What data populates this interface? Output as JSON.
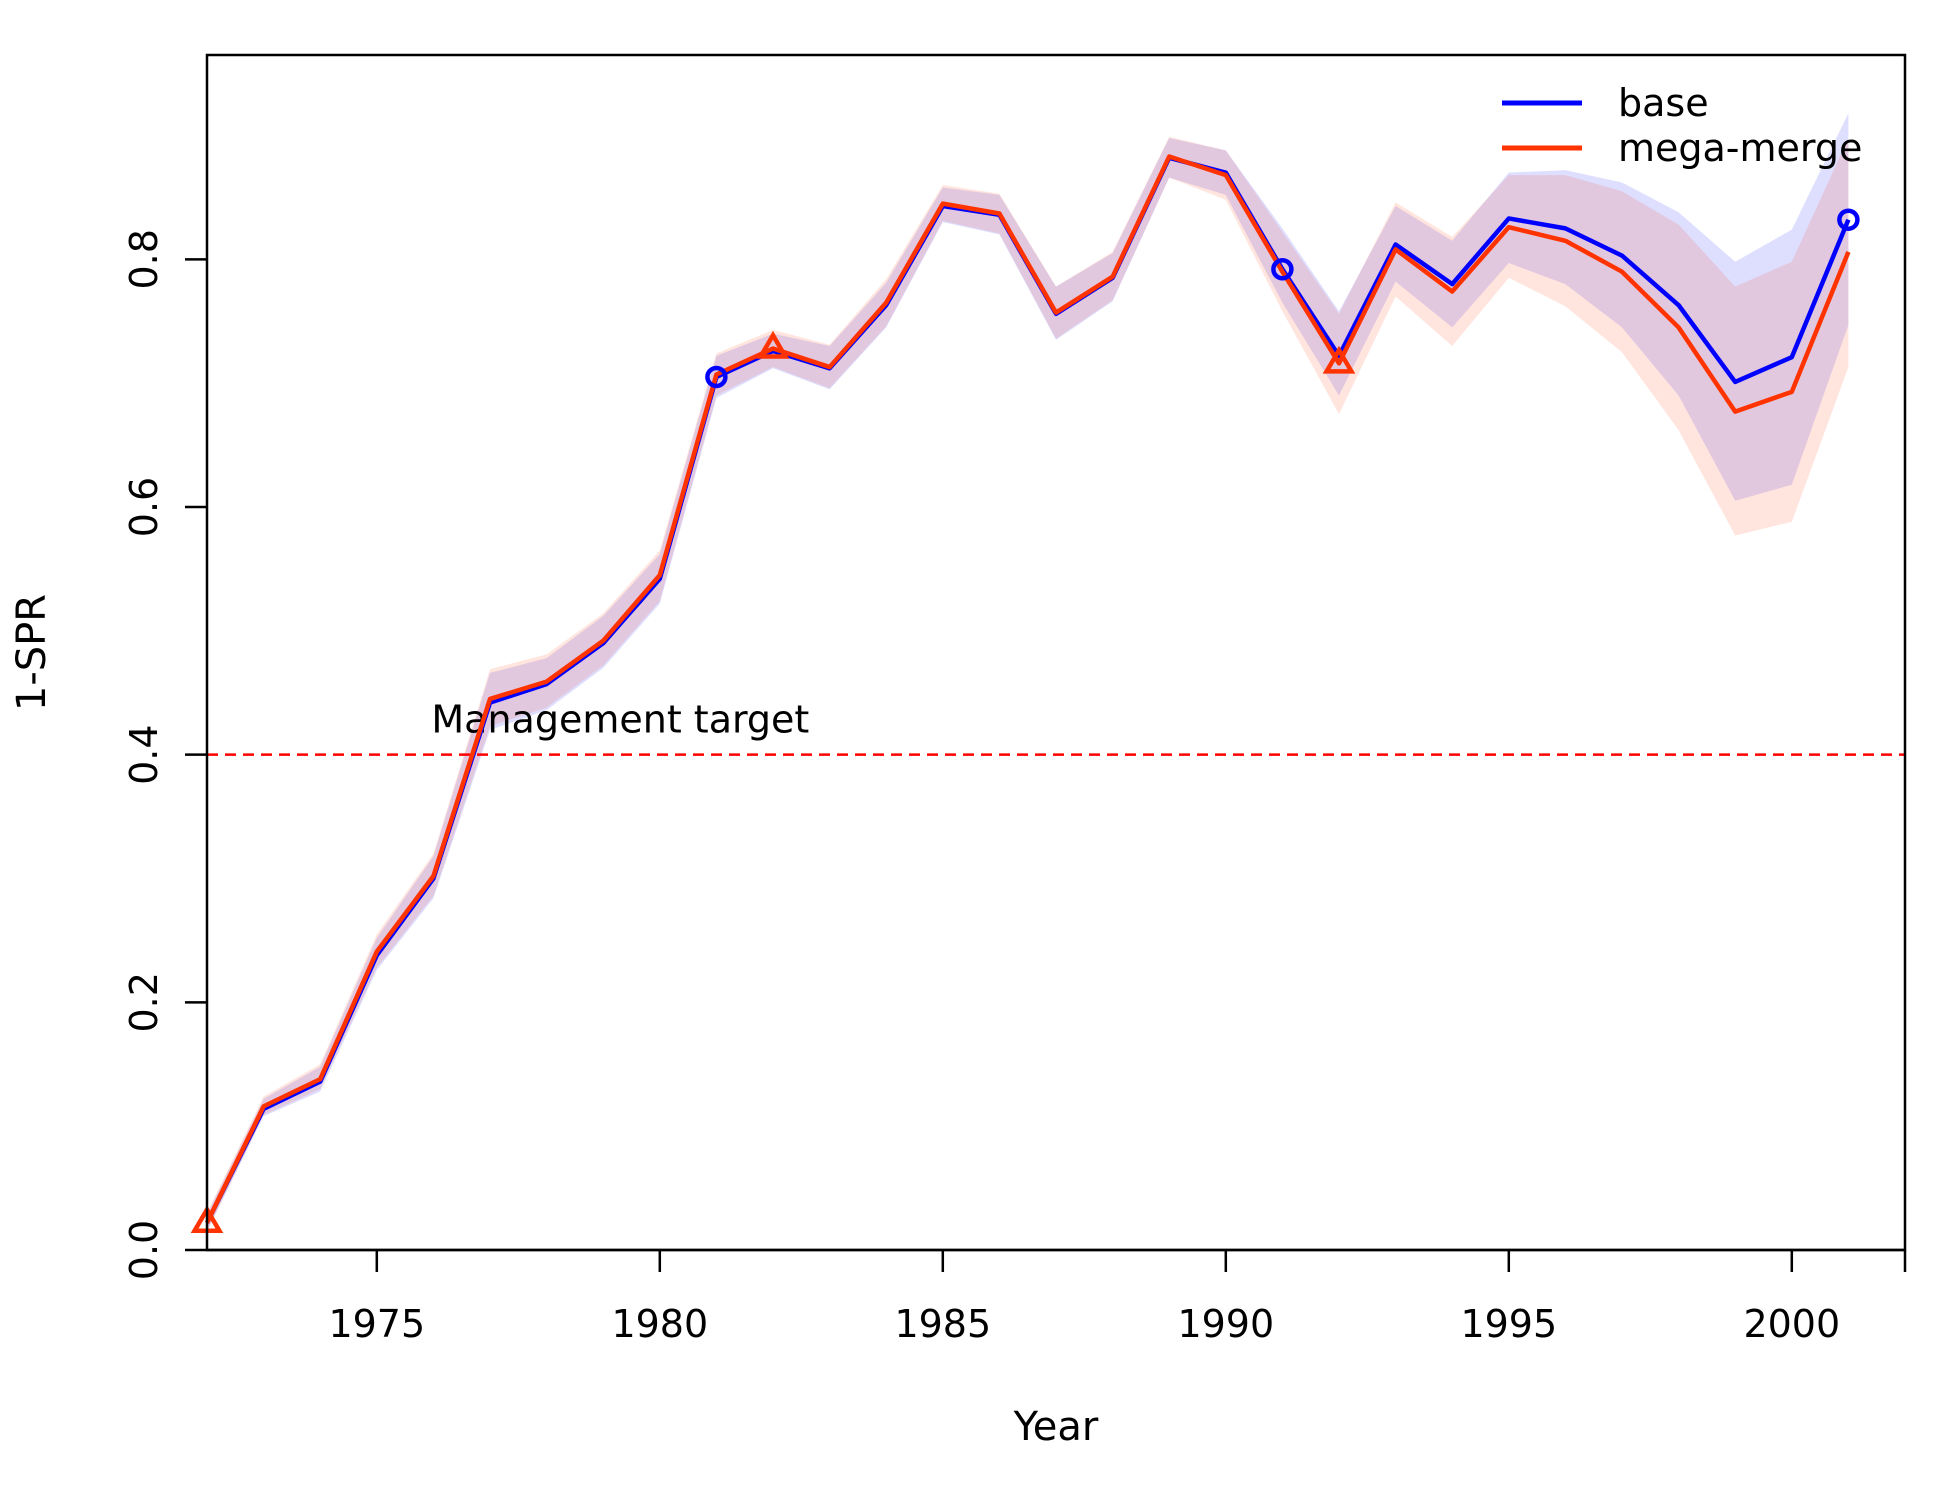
{
  "chart_data": {
    "type": "line",
    "xlabel": "Year",
    "ylabel": "1-SPR",
    "xlim": [
      1972,
      2002
    ],
    "ylim": [
      0,
      0.965
    ],
    "x_ticks": [
      1975,
      1980,
      1985,
      1990,
      1995,
      2000
    ],
    "x_tick_labels": [
      "1975",
      "1980",
      "1985",
      "1990",
      "1995",
      "2000"
    ],
    "y_ticks": [
      0,
      0.2,
      0.4,
      0.6,
      0.8
    ],
    "y_tick_labels": [
      "0.0",
      "0.2",
      "0.4",
      "0.6",
      "0.8"
    ],
    "grid": false,
    "legend_position": "top-right",
    "reference_line": {
      "y": 0.4,
      "label": "Management target",
      "color": "#ff0000",
      "label_x": 1976
    },
    "x": [
      1972,
      1973,
      1974,
      1975,
      1976,
      1977,
      1978,
      1979,
      1980,
      1981,
      1982,
      1983,
      1984,
      1985,
      1986,
      1987,
      1988,
      1989,
      1990,
      1991,
      1992,
      1993,
      1994,
      1995,
      1996,
      1997,
      1998,
      1999,
      2000,
      2001
    ],
    "series": [
      {
        "name": "base",
        "color": "#0000ff",
        "band_color": "#0000ff",
        "values": [
          0.022,
          0.114,
          0.136,
          0.238,
          0.3,
          0.442,
          0.457,
          0.49,
          0.542,
          0.705,
          0.726,
          0.712,
          0.763,
          0.843,
          0.836,
          0.756,
          0.785,
          0.882,
          0.87,
          0.792,
          0.722,
          0.812,
          0.78,
          0.833,
          0.825,
          0.803,
          0.763,
          0.701,
          0.721,
          0.832
        ],
        "lower": [
          0.015,
          0.108,
          0.128,
          0.226,
          0.284,
          0.42,
          0.436,
          0.47,
          0.522,
          0.688,
          0.712,
          0.695,
          0.745,
          0.83,
          0.82,
          0.735,
          0.766,
          0.866,
          0.852,
          0.765,
          0.69,
          0.782,
          0.745,
          0.797,
          0.78,
          0.745,
          0.69,
          0.605,
          0.618,
          0.747
        ],
        "upper": [
          0.029,
          0.122,
          0.148,
          0.252,
          0.318,
          0.466,
          0.478,
          0.512,
          0.562,
          0.722,
          0.74,
          0.73,
          0.781,
          0.858,
          0.852,
          0.778,
          0.805,
          0.898,
          0.888,
          0.825,
          0.758,
          0.843,
          0.815,
          0.87,
          0.872,
          0.862,
          0.838,
          0.798,
          0.824,
          0.918
        ],
        "marker": "circle",
        "marker_x": [
          1981,
          1991,
          2001
        ]
      },
      {
        "name": "mega-merge",
        "color": "#ff3300",
        "band_color": "#ff3300",
        "values": [
          0.022,
          0.116,
          0.138,
          0.241,
          0.302,
          0.445,
          0.459,
          0.492,
          0.545,
          0.707,
          0.728,
          0.713,
          0.765,
          0.845,
          0.837,
          0.757,
          0.786,
          0.883,
          0.868,
          0.79,
          0.716,
          0.808,
          0.774,
          0.826,
          0.815,
          0.79,
          0.745,
          0.677,
          0.693,
          0.806
        ],
        "lower": [
          0.015,
          0.109,
          0.13,
          0.228,
          0.286,
          0.423,
          0.438,
          0.472,
          0.524,
          0.69,
          0.713,
          0.696,
          0.746,
          0.831,
          0.821,
          0.736,
          0.767,
          0.866,
          0.848,
          0.758,
          0.675,
          0.77,
          0.73,
          0.785,
          0.762,
          0.725,
          0.662,
          0.577,
          0.588,
          0.713
        ],
        "upper": [
          0.03,
          0.124,
          0.15,
          0.255,
          0.32,
          0.469,
          0.481,
          0.514,
          0.565,
          0.724,
          0.743,
          0.731,
          0.784,
          0.86,
          0.853,
          0.778,
          0.806,
          0.899,
          0.888,
          0.822,
          0.756,
          0.846,
          0.818,
          0.868,
          0.868,
          0.855,
          0.828,
          0.778,
          0.798,
          0.898
        ],
        "marker": "triangle",
        "marker_x": [
          1972,
          1982,
          1992
        ]
      }
    ]
  }
}
